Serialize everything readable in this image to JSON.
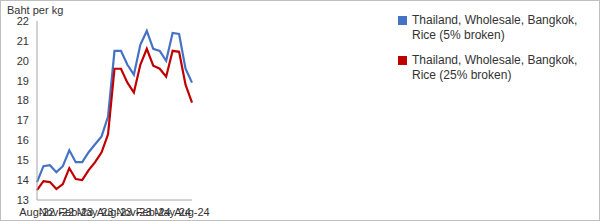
{
  "chart_data": {
    "type": "line",
    "y_label": "Baht per kg",
    "categories": [
      "Aug-22",
      null,
      null,
      "Nov-22",
      null,
      null,
      "Feb-23",
      null,
      null,
      "May-23",
      null,
      null,
      "Aug-23",
      null,
      null,
      "Nov-23",
      null,
      null,
      "Feb-24",
      null,
      null,
      "May-24",
      null,
      null,
      "Aug-24"
    ],
    "series": [
      {
        "name": "Thailand, Wholesale, Bangkok, Rice (5% broken)",
        "color": "#4472c4",
        "values": [
          13.9,
          14.7,
          14.75,
          14.4,
          14.7,
          15.5,
          14.9,
          14.9,
          15.4,
          15.8,
          16.2,
          17.2,
          20.5,
          20.5,
          19.8,
          19.3,
          20.8,
          21.5,
          20.6,
          20.5,
          20.0,
          21.4,
          21.35,
          19.6,
          18.9
        ]
      },
      {
        "name": "Thailand, Wholesale, Bangkok, Rice (25% broken)",
        "color": "#c00000",
        "values": [
          13.5,
          13.95,
          13.9,
          13.55,
          13.8,
          14.6,
          14.05,
          14.0,
          14.5,
          14.9,
          15.4,
          16.3,
          19.6,
          19.6,
          18.9,
          18.4,
          19.8,
          20.6,
          19.75,
          19.6,
          19.2,
          20.5,
          20.45,
          18.8,
          17.9
        ]
      }
    ],
    "ylim": [
      13,
      22
    ],
    "yticks": [
      13,
      14,
      15,
      16,
      17,
      18,
      19,
      20,
      21,
      22
    ],
    "grid": false,
    "legend": "right"
  }
}
